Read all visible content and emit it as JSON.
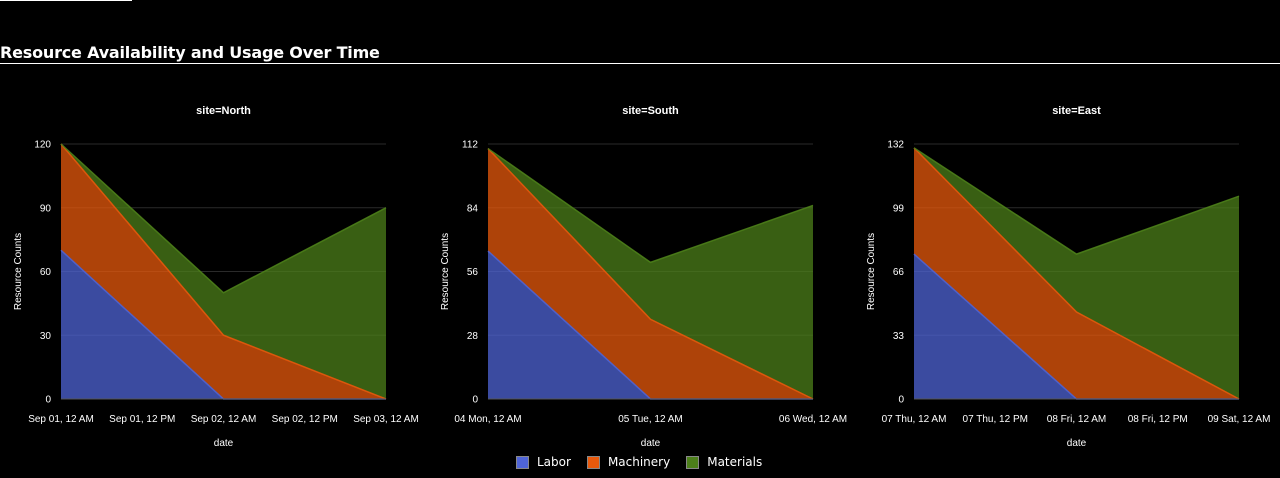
{
  "page": {
    "title": "Resource Availability and Usage Over Time"
  },
  "legend": [
    {
      "label": "Labor",
      "color": "#4f64d6"
    },
    {
      "label": "Machinery",
      "color": "#e8590c"
    },
    {
      "label": "Materials",
      "color": "#4c7f1a"
    }
  ],
  "chart_data": [
    {
      "type": "area",
      "title": "site=North",
      "xlabel": "date",
      "ylabel": "Resource Counts",
      "x": [
        "Sep 01, 12 AM",
        "Sep 02, 12 AM",
        "Sep 03, 12 AM"
      ],
      "x_ticks": [
        "Sep 01, 12 AM",
        "Sep 01, 12 PM",
        "Sep 02, 12 AM",
        "Sep 02, 12 PM",
        "Sep 03, 12 AM"
      ],
      "ylim": [
        0,
        120
      ],
      "y_ticks": [
        "0",
        "30",
        "60",
        "90",
        "120"
      ],
      "stacked": true,
      "series": [
        {
          "name": "Labor",
          "values": [
            70,
            0,
            0
          ]
        },
        {
          "name": "Machinery",
          "values": [
            50,
            30,
            0
          ]
        },
        {
          "name": "Materials",
          "values": [
            0,
            20,
            90
          ]
        }
      ]
    },
    {
      "type": "area",
      "title": "site=South",
      "xlabel": "date",
      "ylabel": "Resource Counts",
      "x": [
        "04 Mon, 12 AM",
        "05 Tue, 12 AM",
        "06 Wed, 12 AM"
      ],
      "x_ticks": [
        "04 Mon, 12 AM",
        "05 Tue, 12 AM",
        "06 Wed, 12 AM"
      ],
      "ylim": [
        0,
        112
      ],
      "y_ticks": [
        "0",
        "28",
        "56",
        "84",
        "112"
      ],
      "stacked": true,
      "series": [
        {
          "name": "Labor",
          "values": [
            65,
            0,
            0
          ]
        },
        {
          "name": "Machinery",
          "values": [
            45,
            35,
            0
          ]
        },
        {
          "name": "Materials",
          "values": [
            0,
            25,
            85
          ]
        }
      ]
    },
    {
      "type": "area",
      "title": "site=East",
      "xlabel": "date",
      "ylabel": "Resource Counts",
      "x": [
        "07 Thu, 12 AM",
        "08 Fri, 12 AM",
        "09 Sat, 12 AM"
      ],
      "x_ticks": [
        "07 Thu, 12 AM",
        "07 Thu, 12 PM",
        "08 Fri, 12 AM",
        "08 Fri, 12 PM",
        "09 Sat, 12 AM"
      ],
      "ylim": [
        0,
        132
      ],
      "y_ticks": [
        "0",
        "33",
        "66",
        "99",
        "132"
      ],
      "stacked": true,
      "series": [
        {
          "name": "Labor",
          "values": [
            75,
            0,
            0
          ]
        },
        {
          "name": "Machinery",
          "values": [
            55,
            45,
            0
          ]
        },
        {
          "name": "Materials",
          "values": [
            0,
            30,
            105
          ]
        }
      ]
    }
  ]
}
